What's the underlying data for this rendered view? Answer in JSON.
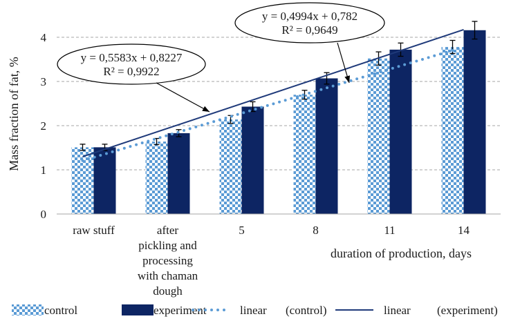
{
  "chart_data": {
    "type": "bar",
    "title": "",
    "xlabel": "duration of production, days",
    "ylabel": "Mass fraction of fat, %",
    "ylim": [
      0,
      4.5
    ],
    "yticks": [
      "0",
      "1",
      "2",
      "3",
      "4"
    ],
    "grid": "horizontal dashed",
    "categories": [
      [
        "raw stuff"
      ],
      [
        "after",
        "pickling and",
        "processing",
        "with chaman",
        "dough"
      ],
      [
        "5"
      ],
      [
        "8"
      ],
      [
        "11"
      ],
      [
        "14"
      ]
    ],
    "series": [
      {
        "name": "control",
        "color": "#5b9bd5",
        "pattern": "checkerboard",
        "values": [
          1.51,
          1.64,
          2.14,
          2.7,
          3.52,
          3.78
        ],
        "errors": [
          0.07,
          0.07,
          0.09,
          0.1,
          0.15,
          0.15
        ]
      },
      {
        "name": "experiment",
        "color": "#0d2563",
        "values": [
          1.51,
          1.83,
          2.43,
          3.07,
          3.72,
          4.16
        ],
        "errors": [
          0.07,
          0.08,
          0.11,
          0.13,
          0.15,
          0.2
        ]
      }
    ],
    "trendlines": [
      {
        "name": "linear",
        "qualifier": "(control)",
        "series": "control",
        "style": "dotted",
        "color": "#5b9bd5",
        "slope": 0.4994,
        "intercept": 0.782,
        "equation": "y = 0,4994x + 0,782",
        "r2": "R² = 0,9649"
      },
      {
        "name": "linear",
        "qualifier": "(experiment)",
        "series": "experiment",
        "style": "solid",
        "color": "#1f3a7a",
        "slope": 0.5583,
        "intercept": 0.8227,
        "equation": "y = 0,5583x + 0,8227",
        "r2": "R² = 0,9922"
      }
    ],
    "legend": {
      "position": "bottom",
      "items": [
        "control",
        "experiment",
        "linear",
        "(control)",
        "linear",
        "(experiment)"
      ]
    }
  }
}
